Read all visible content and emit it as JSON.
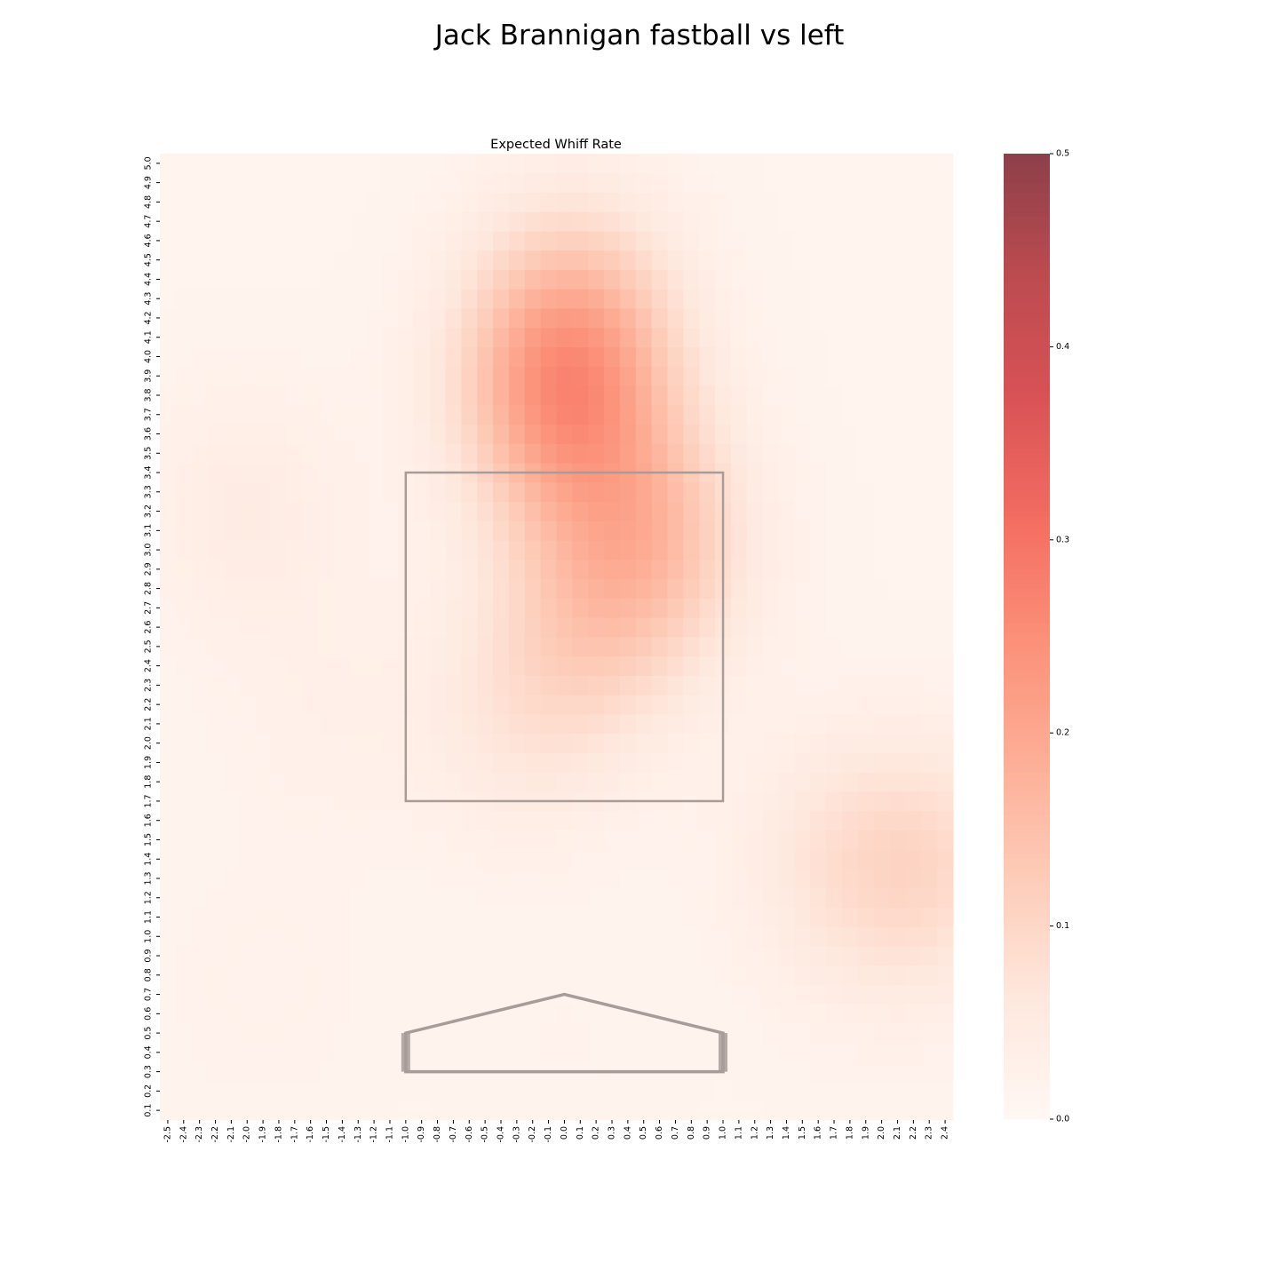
{
  "figure": {
    "suptitle": "Jack Brannigan fastball vs left"
  },
  "chart_data": {
    "type": "heatmap",
    "title": "Expected Whiff Rate",
    "xlabel": "",
    "ylabel": "",
    "x_ticks": [
      "-2.5",
      "-2.4",
      "-2.3",
      "-2.2",
      "-2.1",
      "-2.0",
      "-1.9",
      "-1.8",
      "-1.7",
      "-1.6",
      "-1.5",
      "-1.4",
      "-1.3",
      "-1.2",
      "-1.1",
      "-1.0",
      "-0.9",
      "-0.8",
      "-0.7",
      "-0.6",
      "-0.5",
      "-0.4",
      "-0.3",
      "-0.2",
      "-0.1",
      "0.0",
      "0.1",
      "0.2",
      "0.3",
      "0.4",
      "0.5",
      "0.6",
      "0.7",
      "0.8",
      "0.9",
      "1.0",
      "1.1",
      "1.2",
      "1.3",
      "1.4",
      "1.5",
      "1.6",
      "1.7",
      "1.8",
      "1.9",
      "2.0",
      "2.1",
      "2.2",
      "2.3",
      "2.4"
    ],
    "y_ticks": [
      "0.1",
      "0.2",
      "0.3",
      "0.4",
      "0.5",
      "0.6",
      "0.7",
      "0.8",
      "0.9",
      "1.0",
      "1.1",
      "1.2",
      "1.3",
      "1.4",
      "1.5",
      "1.6",
      "1.7",
      "1.8",
      "1.9",
      "2.0",
      "2.1",
      "2.2",
      "2.3",
      "2.4",
      "2.5",
      "2.6",
      "2.7",
      "2.8",
      "2.9",
      "3.0",
      "3.1",
      "3.2",
      "3.3",
      "3.4",
      "3.5",
      "3.6",
      "3.7",
      "3.8",
      "3.9",
      "4.0",
      "4.1",
      "4.2",
      "4.3",
      "4.4",
      "4.5",
      "4.6",
      "4.7",
      "4.8",
      "4.9",
      "5.0"
    ],
    "x_range": [
      -2.5,
      2.4
    ],
    "y_range": [
      0.1,
      5.0
    ],
    "colorbar": {
      "min": 0.0,
      "max": 0.5,
      "ticks": [
        "0.0",
        "0.1",
        "0.2",
        "0.3",
        "0.4",
        "0.5"
      ],
      "colormap": "Reds",
      "alpha": 0.75
    },
    "hotspots": [
      {
        "x": 0.0,
        "y": 3.75,
        "value": 0.185
      },
      {
        "x": 0.5,
        "y": 3.05,
        "value": 0.14
      },
      {
        "x": 0.05,
        "y": 4.2,
        "value": 0.12
      },
      {
        "x": 0.1,
        "y": 2.55,
        "value": 0.08
      },
      {
        "x": -0.3,
        "y": 2.1,
        "value": 0.05
      },
      {
        "x": 2.3,
        "y": 1.38,
        "value": 0.08
      },
      {
        "x": 1.7,
        "y": 1.42,
        "value": 0.055
      },
      {
        "x": -2.0,
        "y": 3.2,
        "value": 0.045
      },
      {
        "x": -1.5,
        "y": 2.15,
        "value": 0.03
      },
      {
        "x": -1.9,
        "y": 0.75,
        "value": 0.025
      },
      {
        "x": 0.0,
        "y": 0.45,
        "value": 0.02
      },
      {
        "x": 2.0,
        "y": 1.0,
        "value": 0.025
      }
    ],
    "base_value": 0.015,
    "strike_zone": {
      "x": [
        -1.0,
        1.0
      ],
      "y": [
        1.7,
        3.4
      ]
    },
    "home_plate": {
      "x": [
        -1.0,
        1.0
      ],
      "y_bottom": 0.3,
      "y_edge": 0.5,
      "y_tip": 0.7
    },
    "grid": false,
    "colors": {
      "zone_line": "#a89c99",
      "plate_line": "#a89c99",
      "cmap_low": "#fff5f0",
      "cmap_high": "#67000d"
    }
  }
}
